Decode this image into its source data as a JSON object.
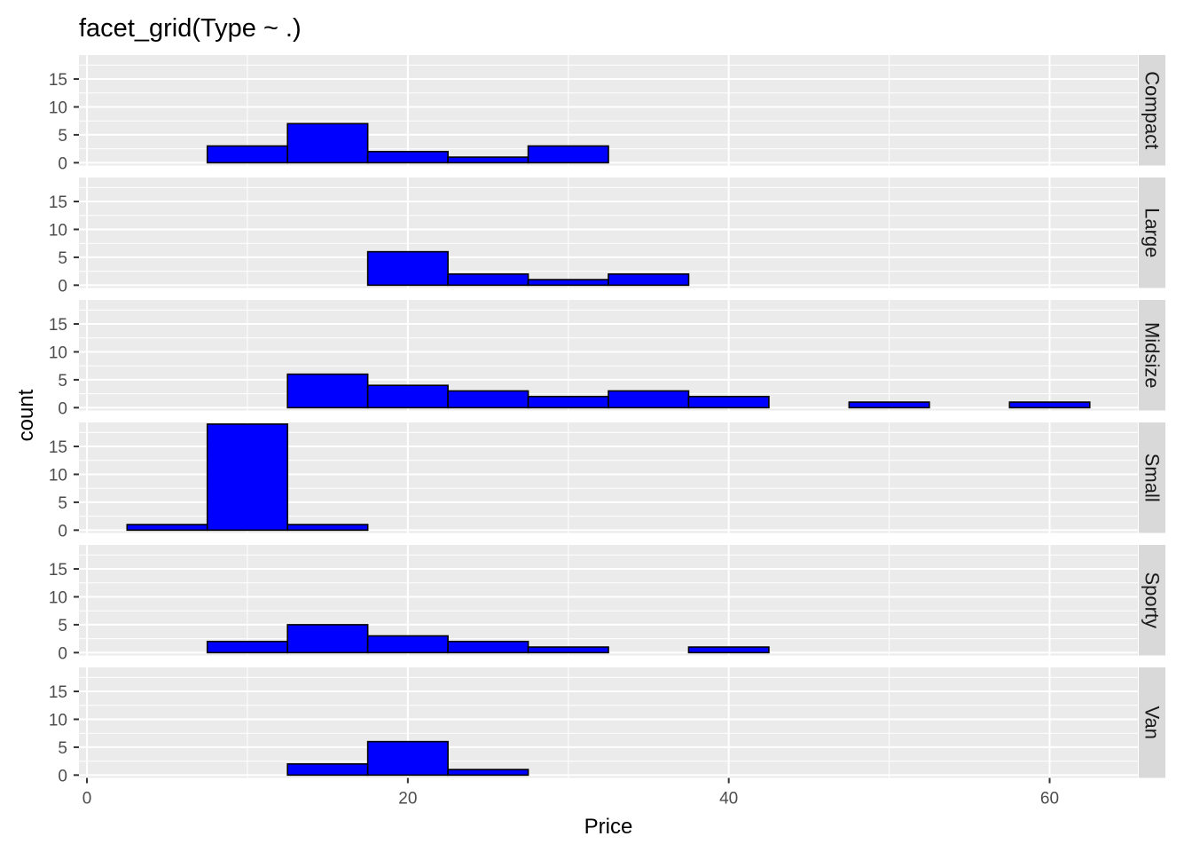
{
  "chart_data": {
    "type": "bar",
    "title": "facet_grid(Type ~ .)",
    "xlabel": "Price",
    "ylabel": "count",
    "xlim": [
      -0.5,
      65.5
    ],
    "ylim": [
      -0.5,
      19.3
    ],
    "x_ticks": [
      "0",
      "20",
      "40",
      "60"
    ],
    "y_ticks": [
      "0",
      "5",
      "10",
      "15"
    ],
    "bin_edges": [
      2.5,
      7.5,
      12.5,
      17.5,
      22.5,
      27.5,
      32.5,
      37.5,
      42.5,
      47.5,
      52.5,
      57.5,
      62.5
    ],
    "bar_color": "#0000ff",
    "grid": true,
    "facets": [
      {
        "name": "Compact",
        "values": [
          0,
          3,
          7,
          2,
          1,
          3,
          0,
          0,
          0,
          0,
          0,
          0
        ]
      },
      {
        "name": "Large",
        "values": [
          0,
          0,
          0,
          6,
          2,
          1,
          2,
          0,
          0,
          0,
          0,
          0
        ]
      },
      {
        "name": "Midsize",
        "values": [
          0,
          0,
          6,
          4,
          3,
          2,
          3,
          2,
          0,
          1,
          0,
          1
        ]
      },
      {
        "name": "Small",
        "values": [
          1,
          19,
          1,
          0,
          0,
          0,
          0,
          0,
          0,
          0,
          0,
          0
        ]
      },
      {
        "name": "Sporty",
        "values": [
          0,
          2,
          5,
          3,
          2,
          1,
          0,
          1,
          0,
          0,
          0,
          0
        ]
      },
      {
        "name": "Van",
        "values": [
          0,
          0,
          2,
          6,
          1,
          0,
          0,
          0,
          0,
          0,
          0,
          0
        ]
      }
    ]
  }
}
